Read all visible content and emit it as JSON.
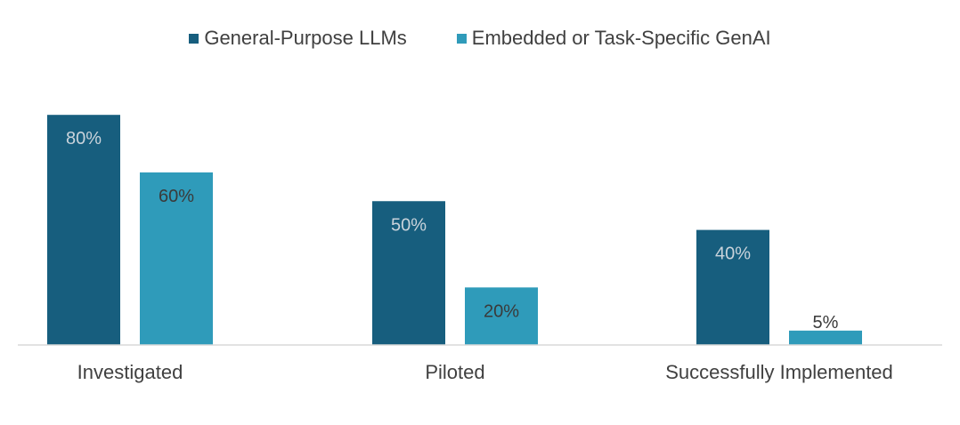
{
  "chart_data": {
    "type": "bar",
    "categories": [
      "Investigated",
      "Piloted",
      "Successfully Implemented"
    ],
    "series": [
      {
        "name": "General-Purpose LLMs",
        "color": "#175E7E",
        "label_color": "#C9D3DB",
        "values": [
          80,
          50,
          40
        ],
        "labels": [
          "80%",
          "50%",
          "40%"
        ]
      },
      {
        "name": "Embedded or Task-Specific GenAI",
        "color": "#2F9BBA",
        "label_color": "#3A3A3A",
        "values": [
          60,
          20,
          5
        ],
        "labels": [
          "60%",
          "20%",
          "5%"
        ]
      }
    ],
    "ylim": [
      0,
      100
    ],
    "legend": "top-center",
    "grid": false
  }
}
